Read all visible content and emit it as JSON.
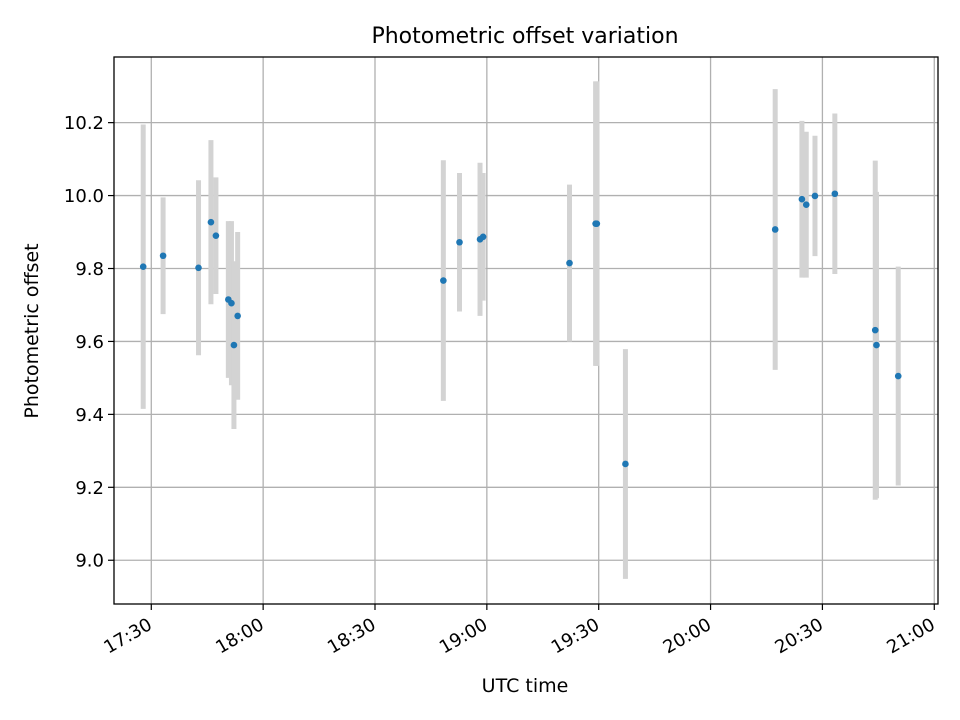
{
  "chart_data": {
    "type": "scatter",
    "title": "Photometric offset variation",
    "xlabel": "UTC time",
    "ylabel": "Photometric offset",
    "x_ticks": [
      "17:30",
      "18:00",
      "18:30",
      "19:00",
      "19:30",
      "20:00",
      "20:30",
      "21:00"
    ],
    "y_ticks": [
      "9.0",
      "9.2",
      "9.4",
      "9.6",
      "9.8",
      "10.0",
      "10.2"
    ],
    "xlim": [
      "17:20",
      "21:01"
    ],
    "ylim": [
      8.88,
      10.38
    ],
    "grid": true,
    "marker_color": "#1f77b4",
    "errorbar_color": "#d3d3d3",
    "series": [
      {
        "points": [
          {
            "x": "17:27:50",
            "y": 9.805,
            "err": 0.39
          },
          {
            "x": "17:33:10",
            "y": 9.835,
            "err": 0.16
          },
          {
            "x": "17:42:40",
            "y": 9.802,
            "err": 0.24
          },
          {
            "x": "17:46:00",
            "y": 9.927,
            "err": 0.225
          },
          {
            "x": "17:47:20",
            "y": 9.89,
            "err": 0.16
          },
          {
            "x": "17:50:40",
            "y": 9.715,
            "err": 0.215
          },
          {
            "x": "17:51:30",
            "y": 9.705,
            "err": 0.225
          },
          {
            "x": "17:52:10",
            "y": 9.59,
            "err": 0.23
          },
          {
            "x": "17:53:10",
            "y": 9.67,
            "err": 0.23
          },
          {
            "x": "18:48:20",
            "y": 9.767,
            "err": 0.33
          },
          {
            "x": "18:52:40",
            "y": 9.872,
            "err": 0.19
          },
          {
            "x": "18:58:10",
            "y": 9.88,
            "err": 0.21
          },
          {
            "x": "18:59:00",
            "y": 9.887,
            "err": 0.175
          },
          {
            "x": "19:22:10",
            "y": 9.815,
            "err": 0.215
          },
          {
            "x": "19:29:10",
            "y": 9.923,
            "err": 0.39
          },
          {
            "x": "19:29:30",
            "y": 9.923,
            "err": 0.39
          },
          {
            "x": "19:37:10",
            "y": 9.264,
            "err": 0.315
          },
          {
            "x": "20:17:20",
            "y": 9.907,
            "err": 0.385
          },
          {
            "x": "20:24:30",
            "y": 9.99,
            "err": 0.215
          },
          {
            "x": "20:25:40",
            "y": 9.975,
            "err": 0.2
          },
          {
            "x": "20:28:00",
            "y": 9.999,
            "err": 0.165
          },
          {
            "x": "20:33:20",
            "y": 10.005,
            "err": 0.22
          },
          {
            "x": "20:44:10",
            "y": 9.631,
            "err": 0.465
          },
          {
            "x": "20:44:30",
            "y": 9.59,
            "err": 0.42
          },
          {
            "x": "20:50:20",
            "y": 9.505,
            "err": 0.3
          }
        ]
      }
    ]
  }
}
